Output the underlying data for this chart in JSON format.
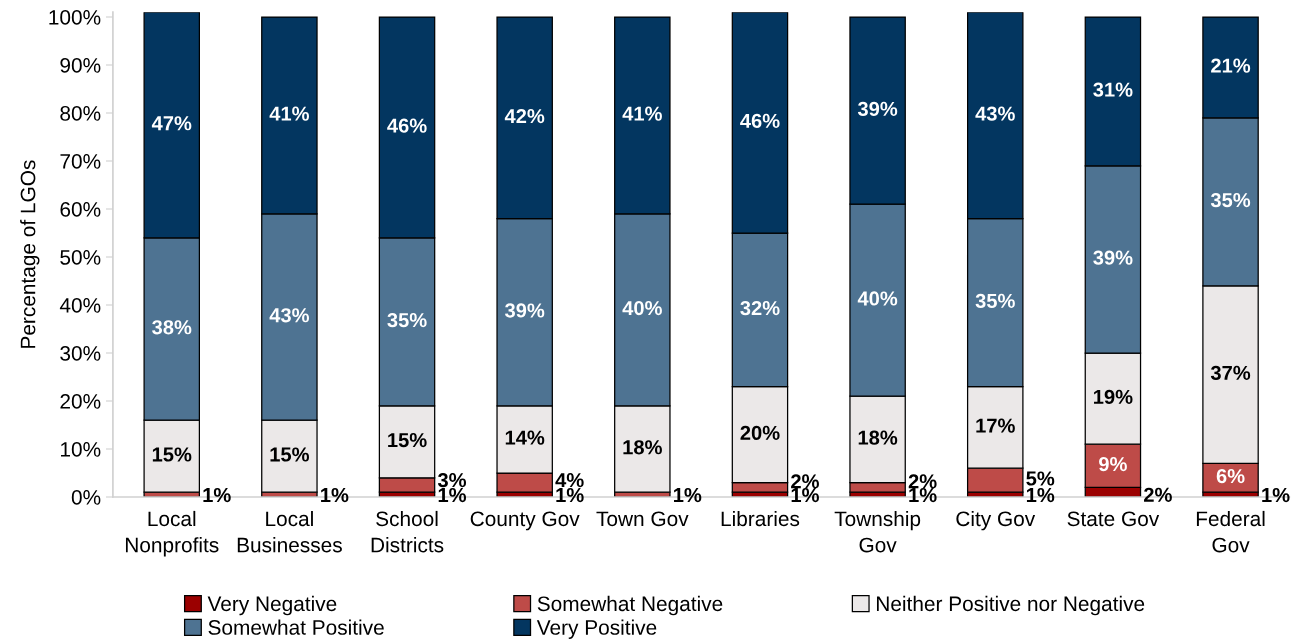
{
  "chart_data": {
    "type": "bar",
    "stacked": true,
    "ylabel": "Percentage of LGOs",
    "categories": [
      "Local\nNonprofits",
      "Local\nBusinesses",
      "School\nDistricts",
      "County Gov",
      "Town Gov",
      "Libraries",
      "Township\nGov",
      "City Gov",
      "State Gov",
      "Federal\nGov"
    ],
    "series": [
      {
        "name": "Very Negative",
        "color": "#9b0000",
        "values": [
          null,
          null,
          1,
          1,
          null,
          1,
          1,
          1,
          2,
          1
        ],
        "value_labels": [
          null,
          null,
          "1%",
          "1%",
          null,
          "1%",
          "1%",
          "1%",
          "2%",
          "1%"
        ]
      },
      {
        "name": "Somewhat Negative",
        "color": "#be4b48",
        "values": [
          1,
          1,
          3,
          4,
          1,
          2,
          2,
          5,
          9,
          6
        ],
        "value_labels": [
          "1%",
          "1%",
          "3%",
          "4%",
          "1%",
          "2%",
          "2%",
          "5%",
          "9%",
          "6%"
        ]
      },
      {
        "name": "Neither Positive nor Negative",
        "color": "#ebe8e8",
        "values": [
          15,
          15,
          15,
          14,
          18,
          20,
          18,
          17,
          19,
          37
        ],
        "value_labels": [
          "15%",
          "15%",
          "15%",
          "14%",
          "18%",
          "20%",
          "18%",
          "17%",
          "19%",
          "37%"
        ]
      },
      {
        "name": "Somewhat Positive",
        "color": "#4e7392",
        "values": [
          38,
          43,
          35,
          39,
          40,
          32,
          40,
          35,
          39,
          35
        ],
        "value_labels": [
          "38%",
          "43%",
          "35%",
          "39%",
          "40%",
          "32%",
          "40%",
          "35%",
          "39%",
          "35%"
        ]
      },
      {
        "name": "Very Positive",
        "color": "#033660",
        "values": [
          47,
          41,
          46,
          42,
          41,
          46,
          39,
          43,
          31,
          21
        ],
        "value_labels": [
          "47%",
          "41%",
          "46%",
          "42%",
          "41%",
          "46%",
          "39%",
          "43%",
          "31%",
          "21%"
        ]
      }
    ],
    "ylim": [
      0,
      101
    ],
    "yticks": [
      {
        "value": 0,
        "label": "0%"
      },
      {
        "value": 10,
        "label": "10%"
      },
      {
        "value": 20,
        "label": "20%"
      },
      {
        "value": 30,
        "label": "30%"
      },
      {
        "value": 40,
        "label": "40%"
      },
      {
        "value": 50,
        "label": "50%"
      },
      {
        "value": 60,
        "label": "60%"
      },
      {
        "value": 70,
        "label": "70%"
      },
      {
        "value": 80,
        "label": "80%"
      },
      {
        "value": 90,
        "label": "90%"
      },
      {
        "value": 100,
        "label": "100%"
      }
    ],
    "legend": "bottom"
  }
}
